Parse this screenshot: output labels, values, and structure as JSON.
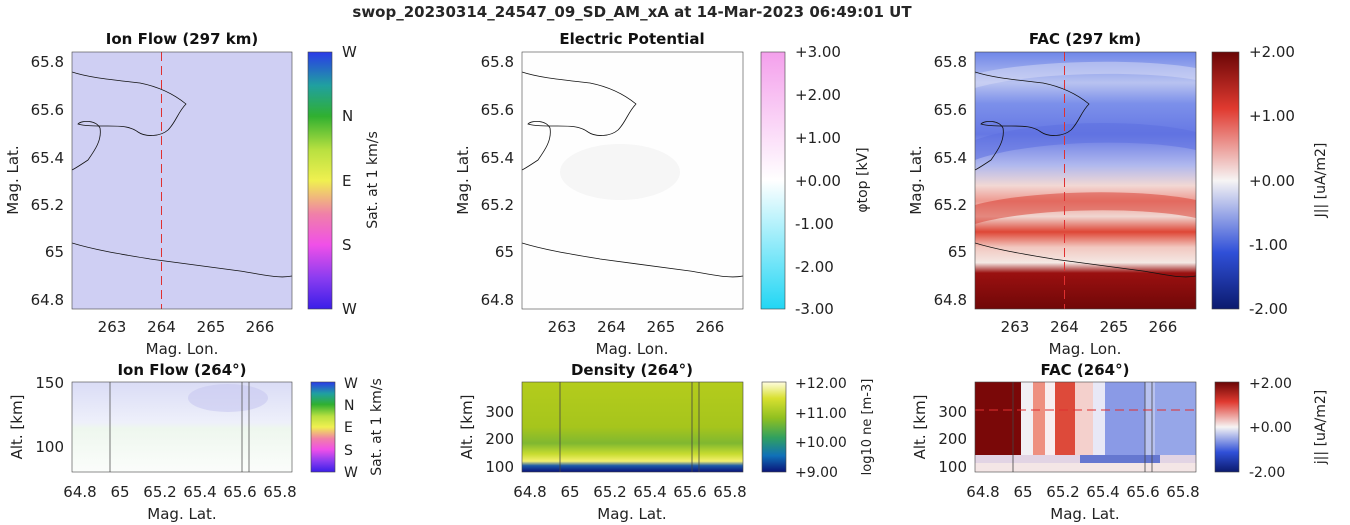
{
  "figure_title": "swop_20230314_24547_09_SD_AM_xA at 14-Mar-2023 06:49:01 UT",
  "colors": {
    "ion_flow_tint": "#d2d2f4",
    "potential_tint": "#fdfdfd",
    "fac_red": "#7a0a0a",
    "fac_blue": "#2040c0",
    "density_top": "#a8c81c",
    "density_bottom": "#0b1a8a",
    "dashed_line": "#e03030",
    "contour": "#111111"
  },
  "chart_data": [
    {
      "id": "ion-flow-map",
      "type": "heatmap",
      "title": "Ion Flow (297 km)",
      "xlabel": "Mag. Lon.",
      "ylabel": "Mag. Lat.",
      "xlim": [
        262.2,
        266.7
      ],
      "ylim": [
        64.75,
        65.85
      ],
      "xticks": [
        "263",
        "264",
        "265",
        "266"
      ],
      "xtick_values": [
        263,
        264,
        265,
        266
      ],
      "yticks": [
        "65.8",
        "65.6",
        "65.4",
        "65.2",
        "65",
        "64.8"
      ],
      "ytick_values": [
        65.8,
        65.6,
        65.4,
        65.2,
        65.0,
        64.8
      ],
      "dashed_vertical_at": 264,
      "colorbar_label": "Sat. at 1 km/s",
      "colorbar_ticks": [
        "W",
        "N",
        "E",
        "S",
        "W"
      ]
    },
    {
      "id": "potential-map",
      "type": "heatmap",
      "title": "Electric Potential",
      "xlabel": "Mag. Lon.",
      "ylabel": "Mag. Lat.",
      "xlim": [
        262.2,
        266.7
      ],
      "ylim": [
        64.75,
        65.85
      ],
      "xticks": [
        "263",
        "264",
        "265",
        "266"
      ],
      "xtick_values": [
        263,
        264,
        265,
        266
      ],
      "yticks": [
        "65.8",
        "65.6",
        "65.4",
        "65.2",
        "65",
        "64.8"
      ],
      "ytick_values": [
        65.8,
        65.6,
        65.4,
        65.2,
        65.0,
        64.8
      ],
      "colorbar_label": "φtop [kV]",
      "colorbar_ticks": [
        "+3.00",
        "+2.00",
        "+1.00",
        "+0.00",
        "-1.00",
        "-2.00",
        "-3.00"
      ]
    },
    {
      "id": "fac-map",
      "type": "heatmap",
      "title": "FAC (297 km)",
      "xlabel": "Mag. Lon.",
      "ylabel": "Mag. Lat.",
      "xlim": [
        262.2,
        266.7
      ],
      "ylim": [
        64.75,
        65.85
      ],
      "xticks": [
        "263",
        "264",
        "265",
        "266"
      ],
      "xtick_values": [
        263,
        264,
        265,
        266
      ],
      "yticks": [
        "65.8",
        "65.6",
        "65.4",
        "65.2",
        "65",
        "64.8"
      ],
      "ytick_values": [
        65.8,
        65.6,
        65.4,
        65.2,
        65.0,
        64.8
      ],
      "dashed_vertical_at": 264,
      "colorbar_label": "J|| [uA/m2]",
      "colorbar_ticks": [
        "+2.00",
        "+1.00",
        "+0.00",
        "-1.00",
        "-2.00"
      ]
    },
    {
      "id": "ion-flow-profile",
      "type": "heatmap",
      "title": "Ion Flow (264°)",
      "xlabel": "Mag. Lat.",
      "ylabel": "Alt. [km]",
      "xlim": [
        64.75,
        65.85
      ],
      "ylim": [
        80,
        150
      ],
      "xticks": [
        "64.8",
        "65",
        "65.2",
        "65.4",
        "65.6",
        "65.8"
      ],
      "xtick_values": [
        64.8,
        65.0,
        65.2,
        65.4,
        65.6,
        65.8
      ],
      "yticks": [
        "150",
        "100"
      ],
      "ytick_values": [
        150,
        100
      ],
      "vertical_lines": [
        64.94,
        65.59,
        65.63
      ],
      "colorbar_label": "Sat. at 1 km/s",
      "colorbar_ticks": [
        "W",
        "N",
        "E",
        "S",
        "W"
      ]
    },
    {
      "id": "density-profile",
      "type": "heatmap",
      "title": "Density (264°)",
      "xlabel": "Mag. Lat.",
      "ylabel": "Alt. [km]",
      "xlim": [
        64.75,
        65.85
      ],
      "ylim": [
        80,
        400
      ],
      "xticks": [
        "64.8",
        "65",
        "65.2",
        "65.4",
        "65.6",
        "65.8"
      ],
      "xtick_values": [
        64.8,
        65.0,
        65.2,
        65.4,
        65.6,
        65.8
      ],
      "yticks": [
        "300",
        "200",
        "100"
      ],
      "ytick_values": [
        300,
        200,
        100
      ],
      "vertical_lines": [
        64.94,
        65.59,
        65.63
      ],
      "colorbar_label": "log10 ne [m-3]",
      "colorbar_ticks": [
        "+12.00",
        "+11.00",
        "+10.00",
        "+9.00"
      ]
    },
    {
      "id": "fac-profile",
      "type": "heatmap",
      "title": "FAC (264°)",
      "xlabel": "Mag. Lat.",
      "ylabel": "Alt. [km]",
      "xlim": [
        64.75,
        65.85
      ],
      "ylim": [
        80,
        400
      ],
      "xticks": [
        "64.8",
        "65",
        "65.2",
        "65.4",
        "65.6",
        "65.8"
      ],
      "xtick_values": [
        64.8,
        65.0,
        65.2,
        65.4,
        65.6,
        65.8
      ],
      "yticks": [
        "300",
        "200",
        "100"
      ],
      "ytick_values": [
        300,
        200,
        100
      ],
      "vertical_lines": [
        64.94,
        65.59,
        65.63
      ],
      "dashed_horizontal_at": 297,
      "colorbar_label": "j|| [uA/m2]",
      "colorbar_ticks": [
        "+2.00",
        "+0.00",
        "-2.00"
      ]
    }
  ]
}
